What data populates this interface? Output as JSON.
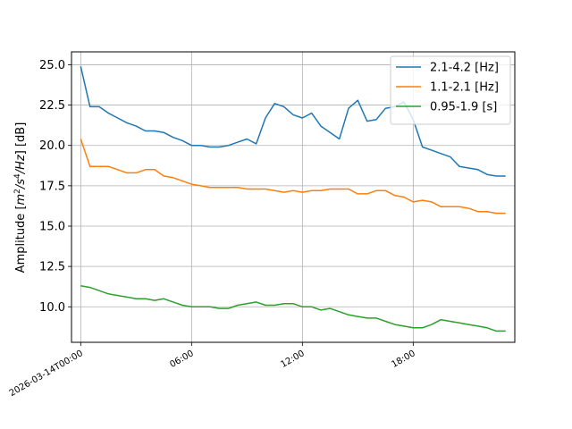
{
  "chart_data": {
    "type": "line",
    "title": "",
    "xlabel": "",
    "ylabel": "Amplitude [m²/s⁴/Hz] [dB]",
    "ylabel_parts": {
      "prefix": "Amplitude [",
      "m": "m",
      "sup1": "2",
      "s": "/s",
      "sup2": "4",
      "hz": "/Hz",
      "suffix": "] [dB]"
    },
    "xlim": [
      -0.5,
      23.5
    ],
    "ylim": [
      7.8,
      25.8
    ],
    "grid": true,
    "legend_position": "top-right",
    "x_ticks": [
      {
        "value": 0,
        "label": "2026-03-14T00:00"
      },
      {
        "value": 6,
        "label": "06:00"
      },
      {
        "value": 12,
        "label": "12:00"
      },
      {
        "value": 18,
        "label": "18:00"
      }
    ],
    "y_ticks": [
      {
        "value": 10.0,
        "label": "10.0"
      },
      {
        "value": 12.5,
        "label": "12.5"
      },
      {
        "value": 15.0,
        "label": "15.0"
      },
      {
        "value": 17.5,
        "label": "17.5"
      },
      {
        "value": 20.0,
        "label": "20.0"
      },
      {
        "value": 22.5,
        "label": "22.5"
      },
      {
        "value": 25.0,
        "label": "25.0"
      }
    ],
    "x": [
      0,
      0.5,
      1,
      1.5,
      2,
      2.5,
      3,
      3.5,
      4,
      4.5,
      5,
      5.5,
      6,
      6.5,
      7,
      7.5,
      8,
      8.5,
      9,
      9.5,
      10,
      10.5,
      11,
      11.5,
      12,
      12.5,
      13,
      13.5,
      14,
      14.5,
      15,
      15.5,
      16,
      16.5,
      17,
      17.5,
      18,
      18.5,
      19,
      19.5,
      20,
      20.5,
      21,
      21.5,
      22,
      22.5,
      23
    ],
    "series": [
      {
        "name": "2.1-4.2 [Hz]",
        "color": "#1f77b4",
        "values": [
          24.9,
          22.4,
          22.4,
          22.0,
          21.7,
          21.4,
          21.2,
          20.9,
          20.9,
          20.8,
          20.5,
          20.3,
          20.0,
          20.0,
          19.9,
          19.9,
          20.0,
          20.2,
          20.4,
          20.1,
          21.7,
          22.6,
          22.4,
          21.9,
          21.7,
          22.0,
          21.2,
          20.8,
          20.4,
          22.3,
          22.8,
          21.5,
          21.6,
          22.3,
          22.4,
          22.7,
          21.6,
          19.9,
          19.7,
          19.5,
          19.3,
          18.7,
          18.6,
          18.5,
          18.2,
          18.1,
          18.1
        ]
      },
      {
        "name": "1.1-2.1 [Hz]",
        "color": "#ff7f0e",
        "values": [
          20.4,
          18.7,
          18.7,
          18.7,
          18.5,
          18.3,
          18.3,
          18.5,
          18.5,
          18.1,
          18.0,
          17.8,
          17.6,
          17.5,
          17.4,
          17.4,
          17.4,
          17.4,
          17.3,
          17.3,
          17.3,
          17.2,
          17.1,
          17.2,
          17.1,
          17.2,
          17.2,
          17.3,
          17.3,
          17.3,
          17.0,
          17.0,
          17.2,
          17.2,
          16.9,
          16.8,
          16.5,
          16.6,
          16.5,
          16.2,
          16.2,
          16.2,
          16.1,
          15.9,
          15.9,
          15.8,
          15.8
        ]
      },
      {
        "name": "0.95-1.9 [s]",
        "color": "#2ca02c",
        "values": [
          11.3,
          11.2,
          11.0,
          10.8,
          10.7,
          10.6,
          10.5,
          10.5,
          10.4,
          10.5,
          10.3,
          10.1,
          10.0,
          10.0,
          10.0,
          9.9,
          9.9,
          10.1,
          10.2,
          10.3,
          10.1,
          10.1,
          10.2,
          10.2,
          10.0,
          10.0,
          9.8,
          9.9,
          9.7,
          9.5,
          9.4,
          9.3,
          9.3,
          9.1,
          8.9,
          8.8,
          8.7,
          8.7,
          8.9,
          9.2,
          9.1,
          9.0,
          8.9,
          8.8,
          8.7,
          8.5,
          8.5
        ]
      }
    ]
  }
}
